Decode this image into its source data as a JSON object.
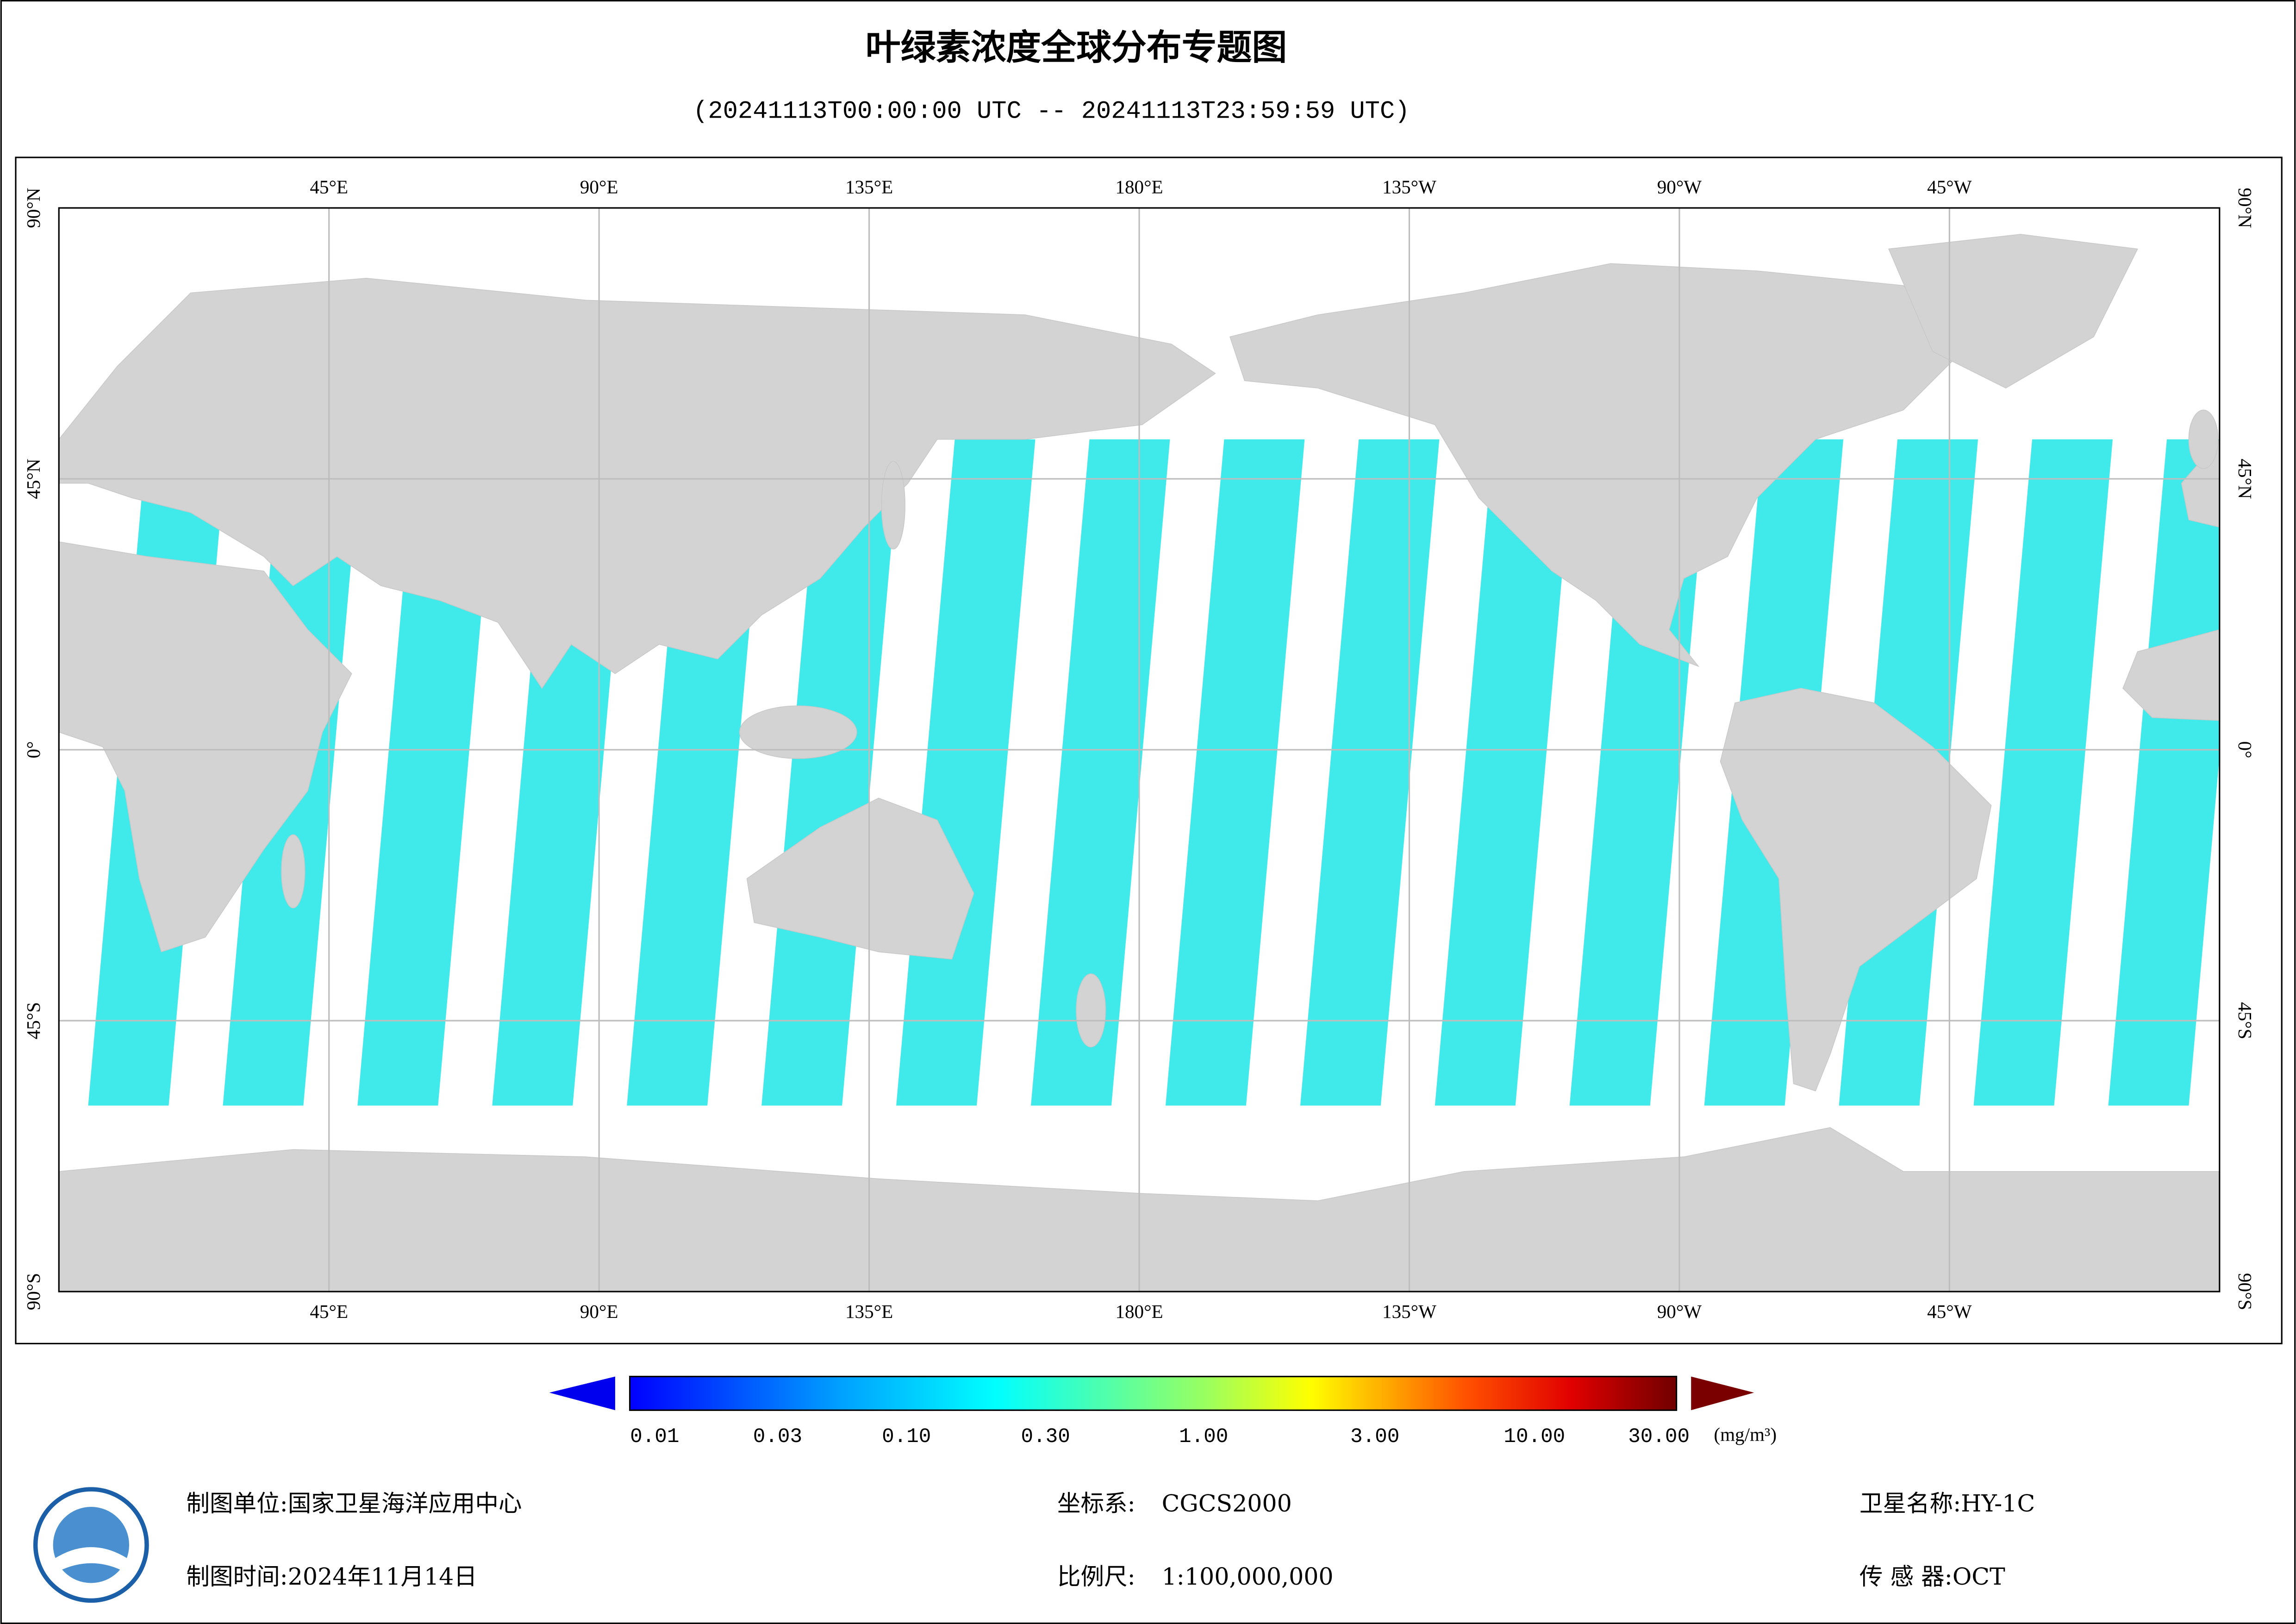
{
  "header": {
    "title": "叶绿素浓度全球分布专题图",
    "subtitle": "(20241113T00:00:00 UTC -- 20241113T23:59:59 UTC)"
  },
  "map": {
    "lon_labels": [
      "45°E",
      "90°E",
      "135°E",
      "180°E",
      "135°W",
      "90°W",
      "45°W"
    ],
    "lat_labels": [
      "90°N",
      "45°N",
      "0°",
      "45°S",
      "90°S"
    ]
  },
  "colorbar": {
    "ticks": [
      "0.01",
      "0.03",
      "0.10",
      "0.30",
      "1.00",
      "3.00",
      "10.00",
      "30.00"
    ],
    "unit": "(mg/m³)"
  },
  "footer": {
    "org_label": "制图单位:",
    "org": "国家卫星海洋应用中心",
    "date_label": "制图时间:",
    "date": "2024年11月14日",
    "crs_label": "坐标系:",
    "crs": "CGCS2000",
    "scale_label": "比例尺:",
    "scale": "1:100,000,000",
    "satellite_label": "卫星名称:",
    "satellite": "HY-1C",
    "sensor_label": "传 感 器:",
    "sensor": "OCT"
  }
}
